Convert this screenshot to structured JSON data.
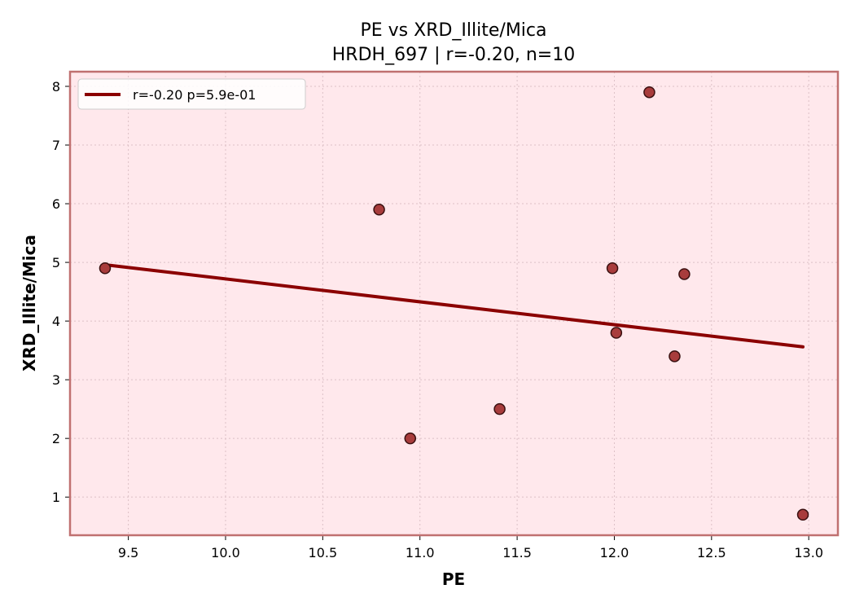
{
  "chart_data": {
    "type": "scatter",
    "title_line1": "PE vs XRD_Illite/Mica",
    "title_line2": "HRDH_697 | r=-0.20, n=10",
    "xlabel": "PE",
    "ylabel": "XRD_Illite/Mica",
    "xlim": [
      9.2,
      13.15
    ],
    "ylim": [
      0.35,
      8.25
    ],
    "xticks": [
      9.5,
      10.0,
      10.5,
      11.0,
      11.5,
      12.0,
      12.5,
      13.0
    ],
    "xtick_labels": [
      "9.5",
      "10.0",
      "10.5",
      "11.0",
      "11.5",
      "12.0",
      "12.5",
      "13.0"
    ],
    "yticks": [
      1,
      2,
      3,
      4,
      5,
      6,
      7,
      8
    ],
    "ytick_labels": [
      "1",
      "2",
      "3",
      "4",
      "5",
      "6",
      "7",
      "8"
    ],
    "grid": true,
    "legend_position": "top-left",
    "points": {
      "x": [
        9.38,
        10.79,
        10.95,
        11.41,
        11.99,
        12.01,
        12.18,
        12.31,
        12.36,
        12.97
      ],
      "y": [
        4.9,
        5.9,
        2.0,
        2.5,
        4.9,
        3.8,
        7.9,
        3.4,
        4.8,
        0.7
      ]
    },
    "fit_line": {
      "label": "r=-0.20  p=5.9e-01",
      "x": [
        9.38,
        12.97
      ],
      "y": [
        4.96,
        3.56
      ]
    },
    "colors": {
      "plot_background": "#ffe8ec",
      "frame": "#c07070",
      "fit_line": "#8b0000",
      "marker_fill": "#a83c3c",
      "marker_edge": "#3a1010",
      "grid": "#dcc0c6"
    }
  }
}
